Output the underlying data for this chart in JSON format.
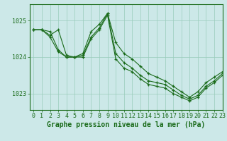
{
  "title": "Graphe pression niveau de la mer (hPa)",
  "bg_color": "#cce8e8",
  "grid_color": "#99ccbb",
  "line_color": "#1a6b1a",
  "xlim": [
    -0.5,
    23
  ],
  "ylim": [
    1022.55,
    1025.45
  ],
  "yticks": [
    1023,
    1024,
    1025
  ],
  "xticks": [
    0,
    1,
    2,
    3,
    4,
    5,
    6,
    7,
    8,
    9,
    10,
    11,
    12,
    13,
    14,
    15,
    16,
    17,
    18,
    19,
    20,
    21,
    22,
    23
  ],
  "series": [
    [
      1024.75,
      1024.75,
      1024.6,
      1024.75,
      1024.05,
      1024.0,
      1024.1,
      1024.7,
      1024.9,
      1025.2,
      1024.4,
      1024.1,
      1023.95,
      1023.75,
      1023.55,
      1023.45,
      1023.35,
      1023.2,
      1023.05,
      1022.9,
      1023.05,
      1023.3,
      1023.45,
      1023.6
    ],
    [
      1024.75,
      1024.75,
      1024.55,
      1024.15,
      1024.0,
      1024.0,
      1024.05,
      1024.55,
      1024.8,
      1025.2,
      1024.1,
      1023.85,
      1023.7,
      1023.5,
      1023.35,
      1023.3,
      1023.25,
      1023.1,
      1022.95,
      1022.85,
      1022.95,
      1023.2,
      1023.35,
      1023.55
    ],
    [
      1024.75,
      1024.75,
      1024.7,
      1024.2,
      1024.0,
      1024.0,
      1024.0,
      1024.5,
      1024.75,
      1025.15,
      1023.95,
      1023.7,
      1023.6,
      1023.4,
      1023.25,
      1023.2,
      1023.15,
      1023.0,
      1022.9,
      1022.8,
      1022.9,
      1023.15,
      1023.3,
      1023.5
    ]
  ],
  "xlabel_fontsize": 7,
  "tick_fontsize": 6,
  "ylabel_ticks": [
    "1023",
    "1024"
  ],
  "top_label_visible": true
}
